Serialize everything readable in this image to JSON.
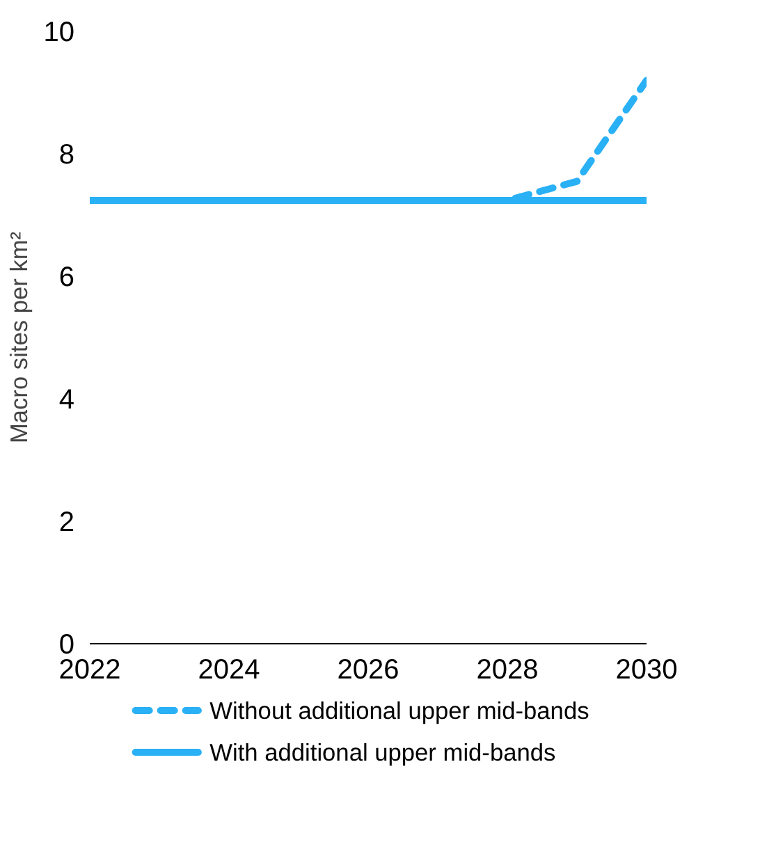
{
  "chart_data": {
    "type": "line",
    "ylabel": "Macro sites per km²",
    "x": [
      2022,
      2023,
      2024,
      2025,
      2026,
      2027,
      2028,
      2029,
      2030
    ],
    "series": [
      {
        "name": "Without additional upper mid-bands",
        "color": "#29b0f5",
        "line_style": "dashed",
        "values": [
          7.24,
          7.24,
          7.24,
          7.24,
          7.24,
          7.24,
          7.24,
          7.55,
          9.2
        ]
      },
      {
        "name": "With additional upper mid-bands",
        "color": "#29b0f5",
        "line_style": "solid",
        "values": [
          7.24,
          7.24,
          7.24,
          7.24,
          7.24,
          7.24,
          7.24,
          7.24,
          7.24
        ]
      }
    ],
    "xlim": [
      2022,
      2030
    ],
    "ylim": [
      0,
      10
    ],
    "xticks": [
      2022,
      2024,
      2026,
      2028,
      2030
    ],
    "yticks": [
      0,
      2,
      4,
      6,
      8,
      10
    ],
    "grid": false,
    "legend": "bottom",
    "marker": "none"
  }
}
